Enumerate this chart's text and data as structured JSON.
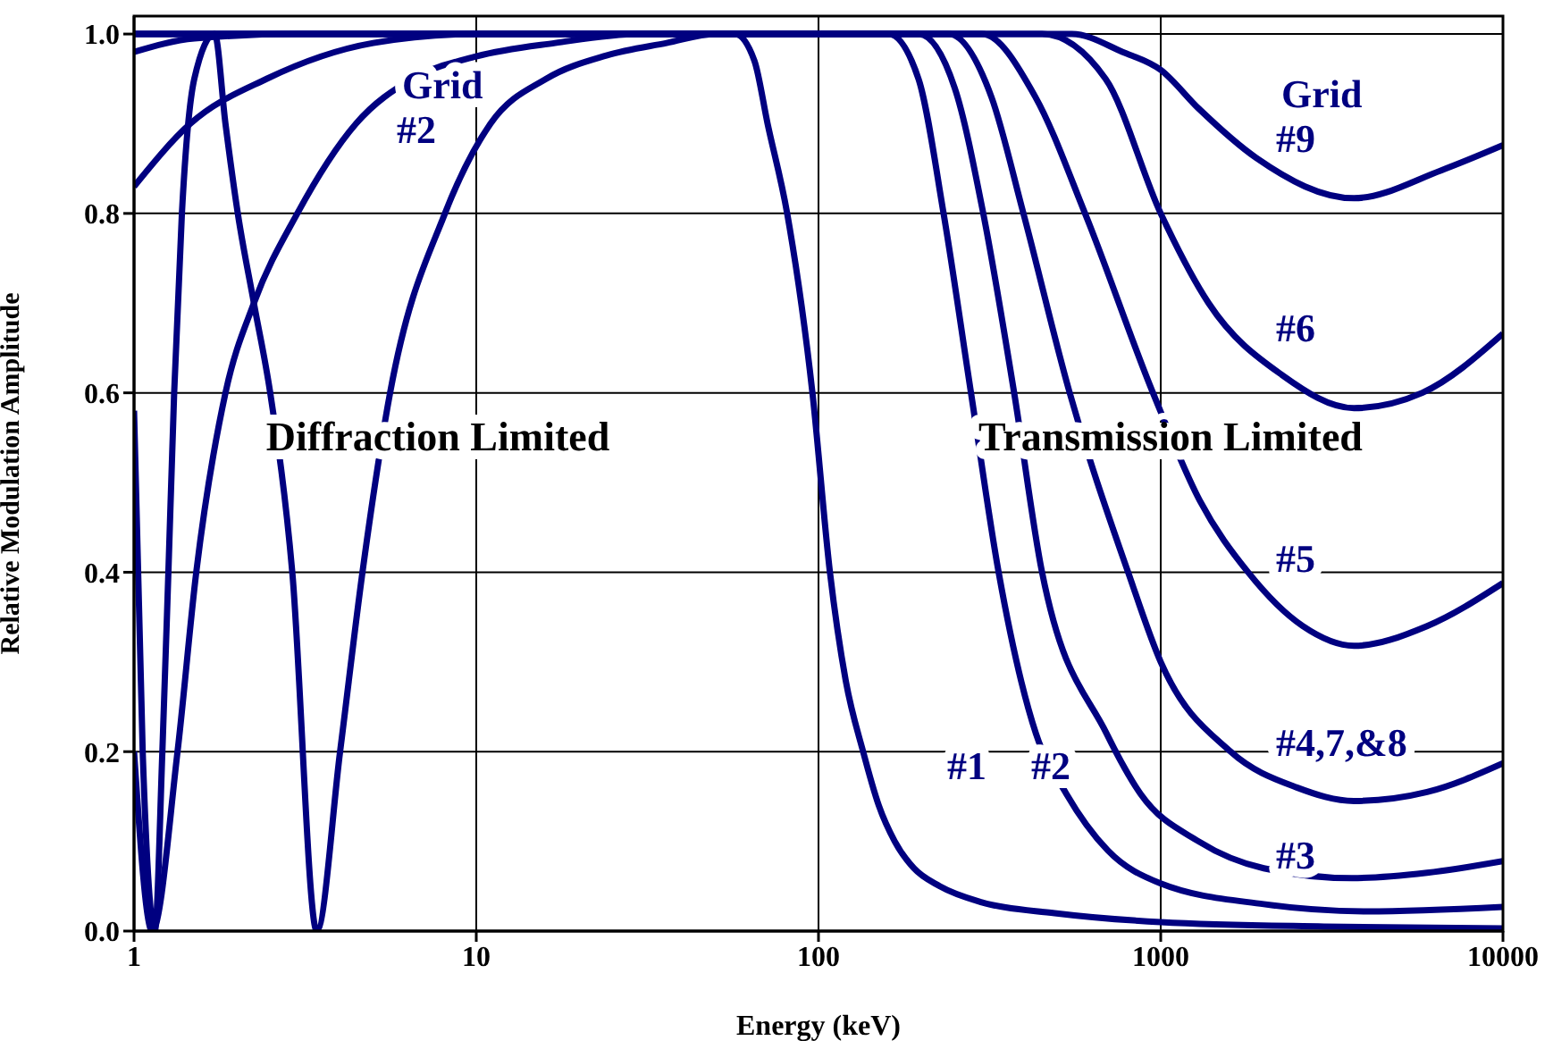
{
  "chart_data": {
    "type": "line",
    "xlabel": "Energy (keV)",
    "ylabel": "Relative Modulation Amplitude",
    "log": "x",
    "grid": true,
    "marker": "none",
    "line_style": "solid",
    "legend": false,
    "xlim": [
      1,
      10000
    ],
    "xticks": [
      1,
      10,
      100,
      1000,
      10000
    ],
    "ylim": [
      0,
      1.02
    ],
    "yticks": [
      {
        "value": 0,
        "label": "0.0"
      },
      {
        "value": 0.2,
        "label": "0.2"
      },
      {
        "value": 0.4,
        "label": "0.4"
      },
      {
        "value": 0.6,
        "label": "0.6"
      },
      {
        "value": 0.8,
        "label": "0.8"
      },
      {
        "value": 1,
        "label": "1.0"
      }
    ],
    "annotations": [
      "Diffraction Limited",
      "Transmission Limited",
      "Grid\n#2",
      "Grid\n#9",
      "#6",
      "#5",
      "#4,7,&8",
      "#3",
      "#1",
      "#2"
    ],
    "series": [
      {
        "color": "#000080",
        "x": [
          1,
          1.06,
          1.15,
          1.21,
          1.26,
          1.31,
          1.38,
          1.5,
          1.72,
          1.85,
          2.01,
          2.24,
          2.5,
          2.9,
          3.42,
          4.0,
          4.65,
          5.6,
          8.1,
          11,
          16,
          24,
          36,
          50,
          57,
          65,
          71,
          81,
          96,
          108,
          120,
          135,
          150,
          167,
          190,
          226,
          300,
          490,
          1000,
          3000,
          10000
        ],
        "values": [
          0.58,
          0.2,
          0,
          0.2,
          0.4,
          0.6,
          0.8,
          0.95,
          1.0,
          0.9,
          0.8,
          0.7,
          0.6,
          0.4,
          0,
          0.2,
          0.4,
          0.6,
          0.8,
          0.9,
          0.95,
          0.976,
          0.99,
          1.0,
          1.0,
          0.97,
          0.9,
          0.8,
          0.6,
          0.4,
          0.28,
          0.2,
          0.14,
          0.1,
          0.07,
          0.05,
          0.032,
          0.02,
          0.01,
          0.005,
          0.003
        ]
      },
      {
        "color": "#000080",
        "x": [
          1,
          1.13,
          1.34,
          1.52,
          1.85,
          2.24,
          3.0,
          4.45,
          6.5,
          10,
          17,
          30,
          100,
          160,
          196,
          232,
          279,
          336,
          432,
          530,
          700,
          1000,
          2000,
          4000,
          10000
        ],
        "values": [
          0.2,
          0,
          0.2,
          0.4,
          0.6,
          0.7,
          0.8,
          0.9,
          0.95,
          0.975,
          0.99,
          1.0,
          1.0,
          1.0,
          0.95,
          0.8,
          0.6,
          0.4,
          0.22,
          0.153,
          0.09,
          0.053,
          0.03,
          0.022,
          0.027
        ]
      },
      {
        "color": "#000080",
        "x": [
          1,
          1.46,
          2.44,
          5,
          10,
          100,
          196,
          250,
          303,
          373,
          450,
          695,
          873,
          1290,
          2000,
          3620,
          6000,
          10000
        ],
        "values": [
          0.83,
          0.9,
          0.95,
          0.99,
          1.0,
          1.0,
          1.0,
          0.94,
          0.8,
          0.6,
          0.4,
          0.22,
          0.153,
          0.1,
          0.07,
          0.059,
          0.065,
          0.078
        ]
      },
      {
        "color": "#000080",
        "x": [
          1,
          1.5,
          3,
          100,
          240,
          320,
          397,
          542,
          803,
          1000,
          1600,
          2500,
          3670,
          6000,
          10000
        ],
        "values": [
          0.98,
          0.995,
          1.0,
          1.0,
          1.0,
          0.93,
          0.8,
          0.6,
          0.4,
          0.3,
          0.2,
          0.16,
          0.145,
          0.155,
          0.187
        ]
      },
      {
        "color": "#000080",
        "x": [
          1,
          100,
          300,
          430,
          601,
          949,
          1300,
          1800,
          2600,
          3670,
          6000,
          10000
        ],
        "values": [
          1,
          1,
          1,
          0.93,
          0.8,
          0.6,
          0.48,
          0.4,
          0.34,
          0.318,
          0.34,
          0.388
        ]
      },
      {
        "color": "#000080",
        "x": [
          1,
          100,
          450,
          690,
          1000,
          1380,
          2260,
          3670,
          5810,
          10000
        ],
        "values": [
          1,
          1,
          1,
          0.95,
          0.8,
          0.7,
          0.62,
          0.583,
          0.6,
          0.666
        ]
      },
      {
        "color": "#000080",
        "x": [
          1,
          100,
          550,
          774,
          1000,
          1290,
          1900,
          3670,
          6600,
          10000
        ],
        "values": [
          1,
          1,
          1,
          0.98,
          0.96,
          0.917,
          0.862,
          0.817,
          0.848,
          0.876
        ]
      }
    ]
  }
}
